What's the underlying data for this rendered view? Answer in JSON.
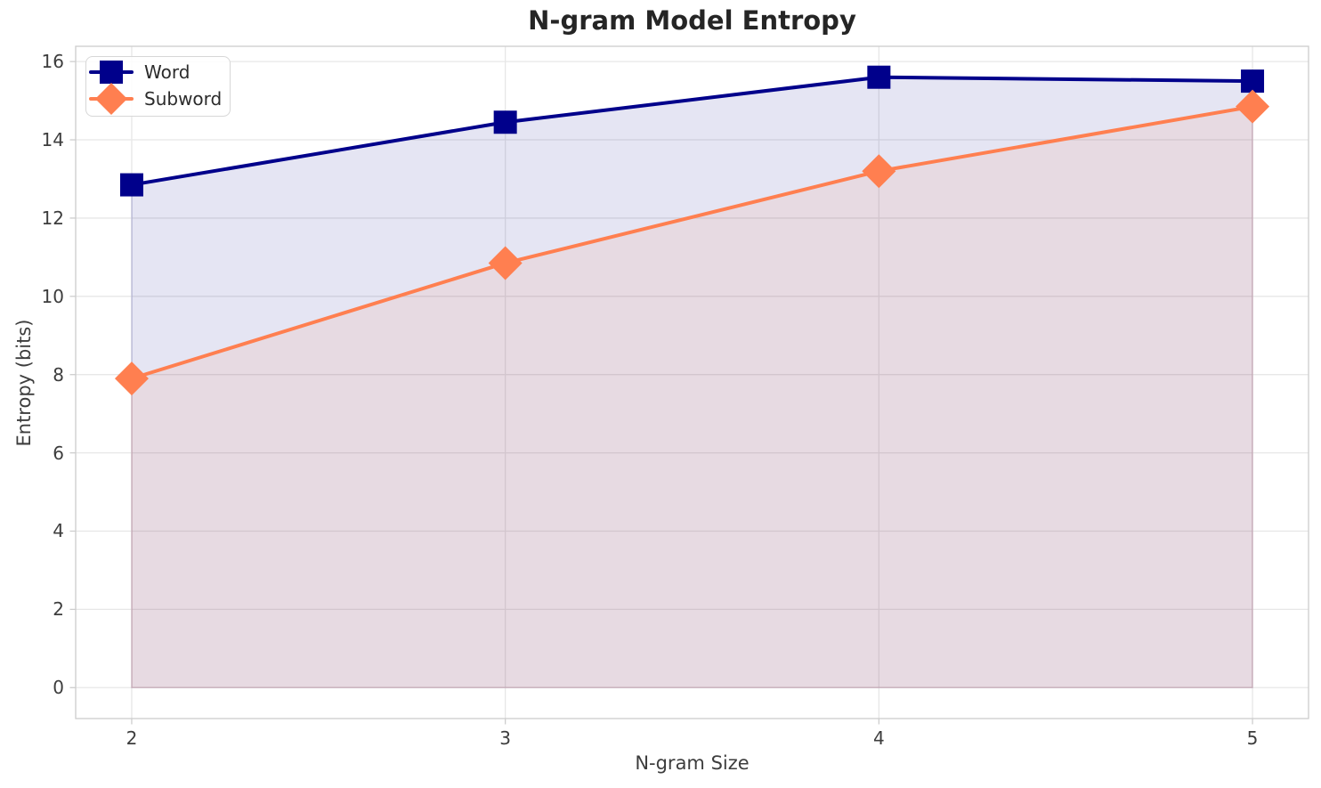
{
  "chart_data": {
    "type": "line",
    "title": "N-gram Model Entropy",
    "xlabel": "N-gram Size",
    "ylabel": "Entropy (bits)",
    "x": [
      2,
      3,
      4,
      5
    ],
    "series": [
      {
        "name": "Word",
        "color": "#00008B",
        "marker": "square",
        "values": [
          12.85,
          14.45,
          15.6,
          15.5
        ],
        "area_fill_to": 0,
        "fill_opacity": 0.1
      },
      {
        "name": "Subword",
        "color": "#FF7F50",
        "marker": "diamond",
        "values": [
          7.9,
          10.85,
          13.2,
          14.85
        ],
        "area_fill_to": 0,
        "fill_opacity": 0.1
      }
    ],
    "xticks": [
      "2",
      "3",
      "4",
      "5"
    ],
    "xtick_positions": [
      2,
      3,
      4,
      5
    ],
    "yticks": [
      "0",
      "2",
      "4",
      "6",
      "8",
      "10",
      "12",
      "14",
      "16"
    ],
    "ytick_positions": [
      0,
      2,
      4,
      6,
      8,
      10,
      12,
      14,
      16
    ],
    "xlim": [
      1.85,
      5.15
    ],
    "ylim": [
      -0.79,
      16.39
    ],
    "grid": true,
    "legend_position": "upper left",
    "background_color": "#ffffff",
    "grid_color": "#e7e7e7",
    "spine_color": "#cdcdcd",
    "tick_color": "#cdcdcd",
    "text_color": "#3d3d3d",
    "title_color": "#252525"
  }
}
